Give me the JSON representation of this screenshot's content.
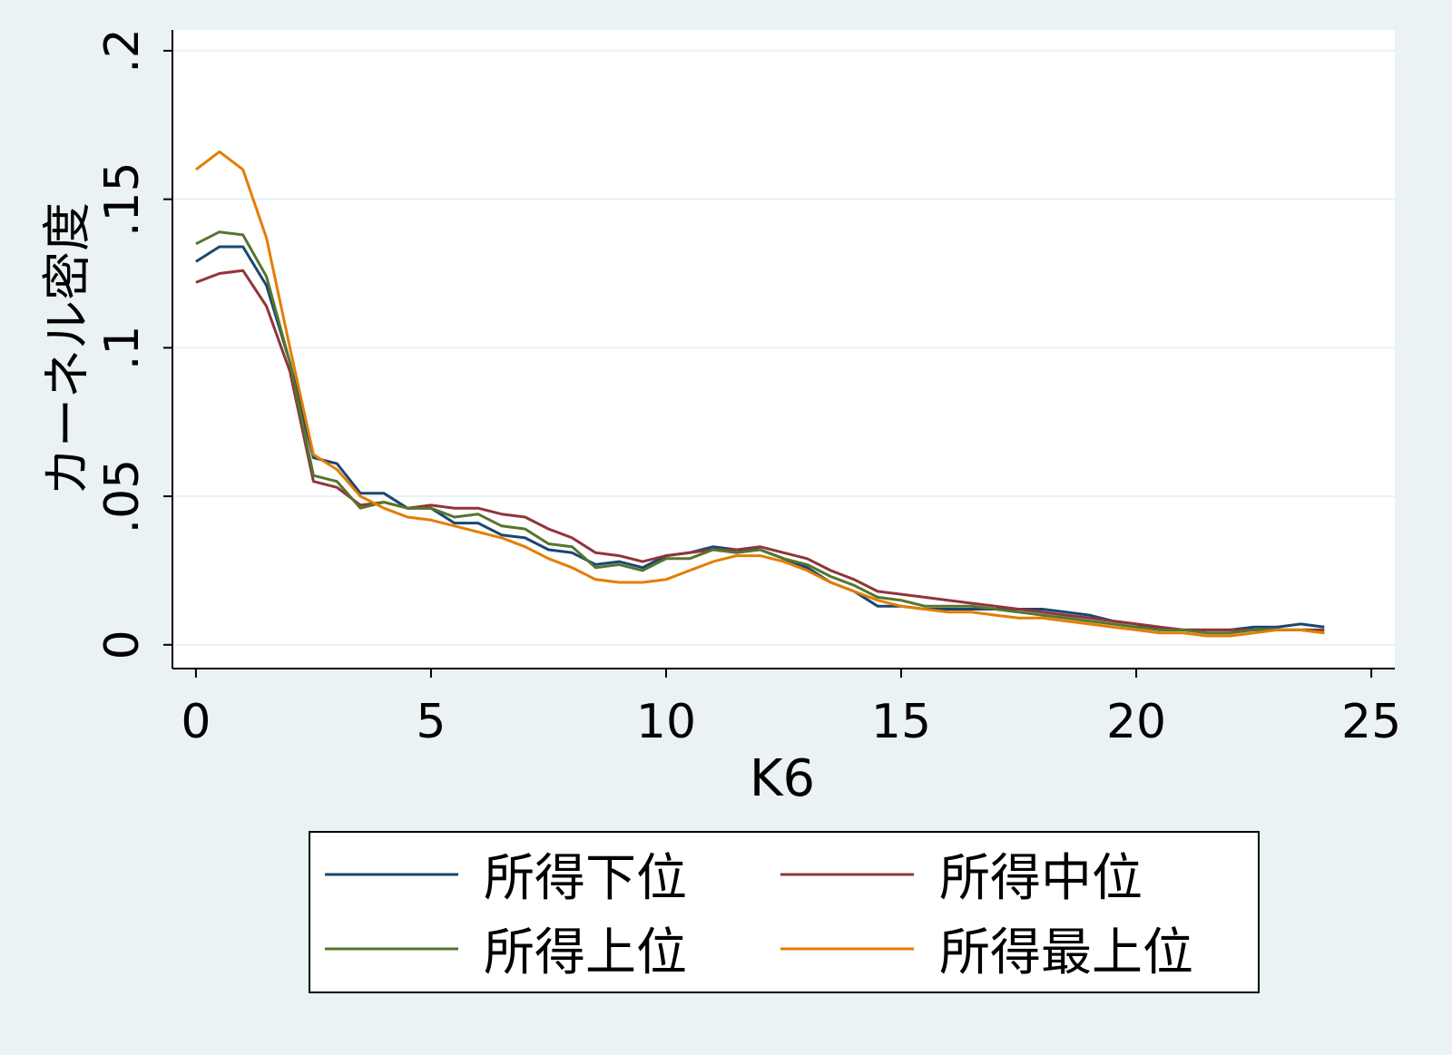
{
  "chart_data": {
    "type": "line",
    "x_label": "K6",
    "y_label": "カーネル密度",
    "x": [
      0,
      0.5,
      1,
      1.5,
      2,
      2.5,
      3,
      3.5,
      4,
      4.5,
      5,
      5.5,
      6,
      6.5,
      7,
      7.5,
      8,
      8.5,
      9,
      9.5,
      10,
      10.5,
      11,
      11.5,
      12,
      12.5,
      13,
      13.5,
      14,
      14.5,
      15,
      15.5,
      16,
      16.5,
      17,
      17.5,
      18,
      18.5,
      19,
      19.5,
      20,
      20.5,
      21,
      21.5,
      22,
      22.5,
      23,
      23.5,
      24
    ],
    "series": [
      {
        "name": "所得下位",
        "color": "#1a476f",
        "values": [
          0.129,
          0.134,
          0.134,
          0.121,
          0.095,
          0.063,
          0.061,
          0.051,
          0.051,
          0.046,
          0.046,
          0.041,
          0.041,
          0.037,
          0.036,
          0.032,
          0.031,
          0.027,
          0.028,
          0.026,
          0.03,
          0.031,
          0.033,
          0.032,
          0.032,
          0.029,
          0.026,
          0.021,
          0.018,
          0.013,
          0.013,
          0.012,
          0.012,
          0.012,
          0.012,
          0.012,
          0.012,
          0.011,
          0.01,
          0.008,
          0.007,
          0.005,
          0.005,
          0.005,
          0.005,
          0.006,
          0.006,
          0.007,
          0.006
        ]
      },
      {
        "name": "所得中位",
        "color": "#90353b",
        "values": [
          0.122,
          0.125,
          0.126,
          0.114,
          0.092,
          0.055,
          0.053,
          0.047,
          0.048,
          0.046,
          0.047,
          0.046,
          0.046,
          0.044,
          0.043,
          0.039,
          0.036,
          0.031,
          0.03,
          0.028,
          0.03,
          0.031,
          0.032,
          0.032,
          0.033,
          0.031,
          0.029,
          0.025,
          0.022,
          0.018,
          0.017,
          0.016,
          0.015,
          0.014,
          0.013,
          0.012,
          0.011,
          0.01,
          0.009,
          0.008,
          0.007,
          0.006,
          0.005,
          0.005,
          0.005,
          0.005,
          0.005,
          0.005,
          0.005
        ]
      },
      {
        "name": "所得上位",
        "color": "#55752f",
        "values": [
          0.135,
          0.139,
          0.138,
          0.124,
          0.095,
          0.057,
          0.055,
          0.046,
          0.048,
          0.046,
          0.046,
          0.043,
          0.044,
          0.04,
          0.039,
          0.034,
          0.033,
          0.026,
          0.027,
          0.025,
          0.029,
          0.029,
          0.032,
          0.031,
          0.032,
          0.029,
          0.027,
          0.023,
          0.02,
          0.016,
          0.015,
          0.013,
          0.013,
          0.013,
          0.012,
          0.011,
          0.01,
          0.009,
          0.008,
          0.007,
          0.006,
          0.005,
          0.005,
          0.004,
          0.004,
          0.005,
          0.005,
          0.005,
          0.004
        ]
      },
      {
        "name": "所得最上位",
        "color": "#e37e00",
        "values": [
          0.16,
          0.166,
          0.16,
          0.137,
          0.1,
          0.064,
          0.059,
          0.05,
          0.046,
          0.043,
          0.042,
          0.04,
          0.038,
          0.036,
          0.033,
          0.029,
          0.026,
          0.022,
          0.021,
          0.021,
          0.022,
          0.025,
          0.028,
          0.03,
          0.03,
          0.028,
          0.025,
          0.021,
          0.018,
          0.015,
          0.013,
          0.012,
          0.011,
          0.011,
          0.01,
          0.009,
          0.009,
          0.008,
          0.007,
          0.006,
          0.005,
          0.004,
          0.004,
          0.003,
          0.003,
          0.004,
          0.005,
          0.005,
          0.004
        ]
      }
    ],
    "xlim": [
      -0.5,
      25.5
    ],
    "xticks": [
      0,
      5,
      10,
      15,
      20,
      25
    ],
    "ylim": [
      -0.008,
      0.207
    ],
    "yticks": [
      0,
      {
        "value": 0.05,
        "label": ".05"
      },
      {
        "value": 0.1,
        "label": ".1"
      },
      {
        "value": 0.15,
        "label": ".15"
      },
      {
        "value": 0.2,
        "label": ".2"
      }
    ],
    "grid": true,
    "legend": "bottom"
  }
}
